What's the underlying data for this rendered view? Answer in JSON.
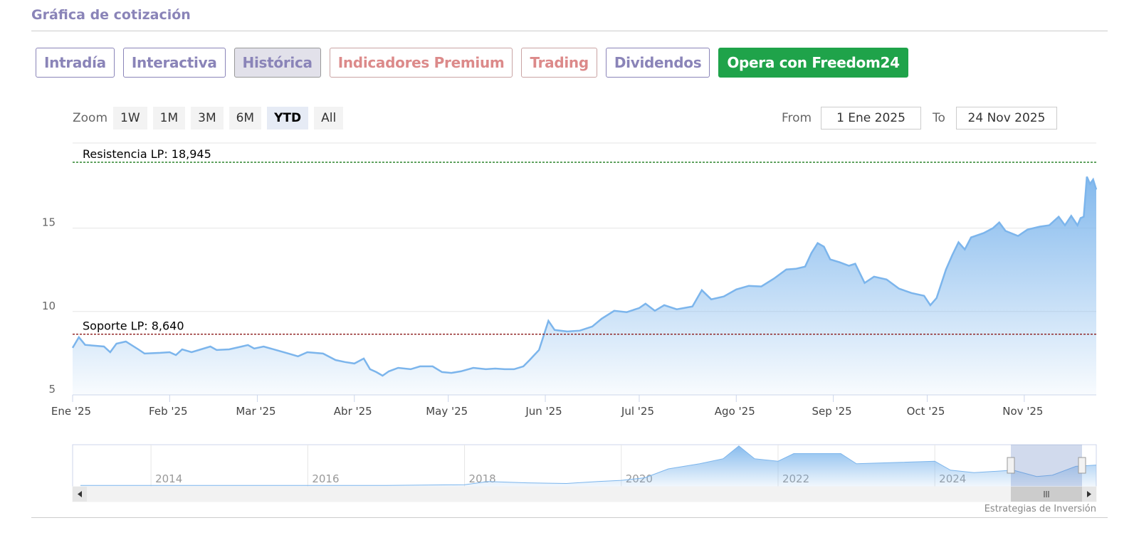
{
  "header": {
    "title": "Gráfica de cotización"
  },
  "tabs": [
    "Intradía",
    "Interactiva",
    "Histórica",
    "Indicadores Premium",
    "Trading",
    "Dividendos",
    "Opera con Freedom24"
  ],
  "zoom": {
    "label": "Zoom",
    "buttons": [
      "1W",
      "1M",
      "3M",
      "6M",
      "YTD",
      "All"
    ]
  },
  "range": {
    "from_label": "From",
    "from": "1 Ene 2025",
    "to_label": "To",
    "to": "24 Nov 2025"
  },
  "credits": "Estrategias de Inversión",
  "chart_data": {
    "type": "area",
    "color": "#7cb5ec",
    "grid": true,
    "x": [
      0,
      2,
      4,
      10,
      12,
      14,
      17,
      21,
      23,
      28,
      31,
      33,
      35,
      38,
      41,
      44,
      46,
      50,
      54,
      56,
      58,
      61,
      65,
      69,
      72,
      75,
      80,
      84,
      87,
      90,
      93,
      95,
      97,
      99,
      101,
      104,
      108,
      111,
      115,
      118,
      121,
      124,
      128,
      132,
      135,
      138,
      141,
      144,
      146,
      149,
      152,
      154,
      158,
      162,
      166,
      169,
      173,
      177,
      181,
      183,
      186,
      189,
      193,
      198,
      201,
      204,
      208,
      212,
      216,
      220,
      224,
      228,
      231,
      234,
      236,
      238,
      240,
      242,
      245,
      248,
      250,
      253,
      256,
      260,
      264,
      268,
      272,
      274,
      276,
      279,
      281,
      283,
      285,
      287,
      291,
      294,
      296,
      298,
      302,
      305,
      309,
      312,
      315,
      317,
      319,
      321,
      322,
      323,
      324,
      325,
      326,
      327
    ],
    "values": [
      7.82,
      8.46,
      8.0,
      7.9,
      7.56,
      8.07,
      8.2,
      7.73,
      7.48,
      7.52,
      7.56,
      7.39,
      7.73,
      7.56,
      7.73,
      7.9,
      7.69,
      7.73,
      7.9,
      7.99,
      7.78,
      7.9,
      7.69,
      7.48,
      7.31,
      7.56,
      7.48,
      7.09,
      6.97,
      6.88,
      7.18,
      6.54,
      6.37,
      6.15,
      6.41,
      6.62,
      6.54,
      6.71,
      6.71,
      6.37,
      6.32,
      6.41,
      6.62,
      6.54,
      6.58,
      6.54,
      6.54,
      6.71,
      7.09,
      7.69,
      9.44,
      8.89,
      8.8,
      8.85,
      9.1,
      9.57,
      10.04,
      9.96,
      10.21,
      10.47,
      10.04,
      10.38,
      10.13,
      10.3,
      11.28,
      10.73,
      10.9,
      11.32,
      11.54,
      11.5,
      11.97,
      12.52,
      12.56,
      12.69,
      13.5,
      14.1,
      13.89,
      13.12,
      12.95,
      12.74,
      12.86,
      11.71,
      12.09,
      11.92,
      11.37,
      11.11,
      10.94,
      10.38,
      10.81,
      12.52,
      13.38,
      14.15,
      13.72,
      14.44,
      14.7,
      15.0,
      15.34,
      14.83,
      14.53,
      14.91,
      15.09,
      15.17,
      15.68,
      15.17,
      15.73,
      15.17,
      15.6,
      15.68,
      18.08,
      17.65,
      17.91,
      17.31
    ],
    "xlim": [
      0,
      327
    ],
    "xticks": [
      {
        "value": 0,
        "label": "Ene '25"
      },
      {
        "value": 31,
        "label": "Feb '25"
      },
      {
        "value": 59,
        "label": "Mar '25"
      },
      {
        "value": 90,
        "label": "Abr '25"
      },
      {
        "value": 120,
        "label": "May '25"
      },
      {
        "value": 151,
        "label": "Jun '25"
      },
      {
        "value": 181,
        "label": "Jul '25"
      },
      {
        "value": 212,
        "label": "Ago '25"
      },
      {
        "value": 243,
        "label": "Sep '25"
      },
      {
        "value": 273,
        "label": "Oct '25"
      },
      {
        "value": 304,
        "label": "Nov '25"
      }
    ],
    "ylim": [
      5,
      20.1
    ],
    "yticks": [
      5,
      10,
      15
    ],
    "annotations": [
      {
        "label": "Resistencia LP: 18,945",
        "value": 18.945,
        "color": "#1a7a1a"
      },
      {
        "label": "Soporte LP: 8,640",
        "value": 8.64,
        "color": "#8b1a1a"
      }
    ],
    "navigator": {
      "x": [
        2013.1,
        2015,
        2017,
        2018,
        2018.3,
        2018.8,
        2019.3,
        2019.7,
        2020,
        2020.3,
        2020.6,
        2021,
        2021.3,
        2021.5,
        2021.7,
        2022,
        2022.2,
        2022.8,
        2023,
        2023.5,
        2024,
        2024.2,
        2024.5,
        2025,
        2025.3,
        2025.5,
        2025.8,
        2026.06
      ],
      "values": [
        1,
        1,
        1,
        1.5,
        4,
        3,
        2.5,
        4,
        5,
        7,
        14,
        18,
        22,
        32,
        22,
        20,
        26,
        26,
        18,
        19,
        20,
        13,
        11,
        13,
        8,
        9,
        16,
        17
      ],
      "xlim": [
        2013,
        2026.06
      ],
      "xticks": [
        2014,
        2016,
        2018,
        2020,
        2022,
        2024
      ],
      "ylim": [
        0,
        33
      ]
    }
  }
}
